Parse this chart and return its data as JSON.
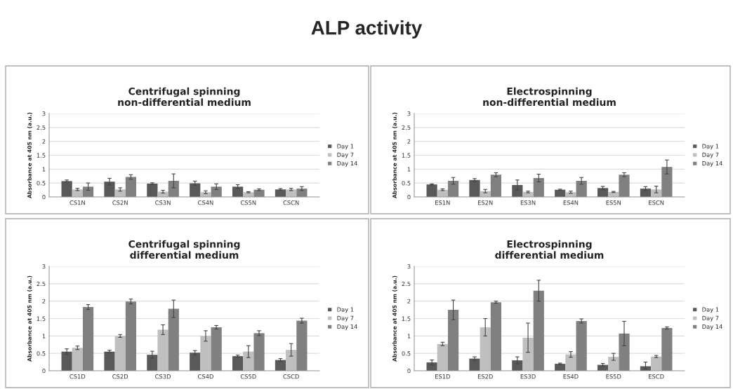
{
  "chart_data": [
    {
      "type": "bar",
      "title": "Centrifugal spinning\nnon-differential medium",
      "ylabel": "Absorbance at 405 nm (a.u.)",
      "annotations": [
        "ALP activity"
      ],
      "categories": [
        "CS1N",
        "CS2N",
        "CS3N",
        "CS4N",
        "CS5N",
        "CSCN"
      ],
      "ylim": [
        0,
        3
      ],
      "yticks": [
        0,
        0.5,
        1,
        1.5,
        2,
        2.5,
        3
      ],
      "grid": "y",
      "legend": "right",
      "series": [
        {
          "name": "Day 1",
          "color": "#595959",
          "values": [
            0.57,
            0.55,
            0.48,
            0.49,
            0.37,
            0.27
          ],
          "errors": [
            0.04,
            0.12,
            0.03,
            0.08,
            0.07,
            0.03
          ]
        },
        {
          "name": "Day 7",
          "color": "#bfbfbf",
          "values": [
            0.27,
            0.27,
            0.19,
            0.17,
            0.17,
            0.27
          ],
          "errors": [
            0.04,
            0.06,
            0.05,
            0.05,
            0.02,
            0.04
          ]
        },
        {
          "name": "Day 14",
          "color": "#808080",
          "values": [
            0.37,
            0.72,
            0.58,
            0.37,
            0.26,
            0.3
          ],
          "errors": [
            0.13,
            0.08,
            0.25,
            0.1,
            0.03,
            0.07
          ]
        }
      ]
    },
    {
      "type": "bar",
      "title": "Electrospinning\nnon-differential medium",
      "ylabel": "Absorbance at 405 nm (a.u.)",
      "categories": [
        "ES1N",
        "ES2N",
        "ES3N",
        "ES4N",
        "ES5N",
        "ESCN"
      ],
      "ylim": [
        0,
        3
      ],
      "yticks": [
        0,
        0.5,
        1,
        1.5,
        2,
        2.5,
        3
      ],
      "grid": "y",
      "legend": "right",
      "series": [
        {
          "name": "Day 1",
          "color": "#595959",
          "values": [
            0.45,
            0.61,
            0.43,
            0.26,
            0.32,
            0.3
          ],
          "errors": [
            0.02,
            0.05,
            0.18,
            0.02,
            0.06,
            0.07
          ]
        },
        {
          "name": "Day 7",
          "color": "#bfbfbf",
          "values": [
            0.26,
            0.21,
            0.18,
            0.17,
            0.18,
            0.27
          ],
          "errors": [
            0.03,
            0.06,
            0.03,
            0.04,
            0.02,
            0.12
          ]
        },
        {
          "name": "Day 14",
          "color": "#808080",
          "values": [
            0.58,
            0.8,
            0.68,
            0.58,
            0.8,
            1.08
          ],
          "errors": [
            0.12,
            0.07,
            0.14,
            0.12,
            0.07,
            0.25
          ]
        }
      ]
    },
    {
      "type": "bar",
      "title": "Centrifugal spinning\ndifferential medium",
      "ylabel": "Absorbance at 405 nm (a.u.)",
      "categories": [
        "CS1D",
        "CS2D",
        "CS3D",
        "CS4D",
        "CS5D",
        "CSCD"
      ],
      "ylim": [
        0,
        3
      ],
      "yticks": [
        0,
        0.5,
        1,
        1.5,
        2,
        2.5,
        3
      ],
      "grid": "y",
      "legend": "right",
      "series": [
        {
          "name": "Day 1",
          "color": "#595959",
          "values": [
            0.55,
            0.55,
            0.46,
            0.52,
            0.42,
            0.31
          ],
          "errors": [
            0.08,
            0.04,
            0.1,
            0.06,
            0.03,
            0.04
          ]
        },
        {
          "name": "Day 7",
          "color": "#bfbfbf",
          "values": [
            0.66,
            1.0,
            1.18,
            1.0,
            0.55,
            0.6
          ],
          "errors": [
            0.05,
            0.04,
            0.14,
            0.15,
            0.17,
            0.18
          ]
        },
        {
          "name": "Day 14",
          "color": "#808080",
          "values": [
            1.83,
            1.99,
            1.78,
            1.25,
            1.08,
            1.44
          ],
          "errors": [
            0.07,
            0.07,
            0.25,
            0.05,
            0.07,
            0.07
          ]
        }
      ]
    },
    {
      "type": "bar",
      "title": "Electrospinning\ndifferential medium",
      "ylabel": "Absorbance at 405 nm (a.u.)",
      "categories": [
        "ES1D",
        "ES2D",
        "ES3D",
        "ES4D",
        "ES5D",
        "ESCD"
      ],
      "ylim": [
        0,
        3
      ],
      "yticks": [
        0,
        0.5,
        1,
        1.5,
        2,
        2.5,
        3
      ],
      "grid": "y",
      "legend": "right",
      "series": [
        {
          "name": "Day 1",
          "color": "#595959",
          "values": [
            0.24,
            0.35,
            0.3,
            0.2,
            0.17,
            0.13
          ],
          "errors": [
            0.07,
            0.05,
            0.1,
            0.02,
            0.04,
            [
              0.05,
              0.25
            ]
          ]
        },
        {
          "name": "Day 7",
          "color": "#bfbfbf",
          "values": [
            0.77,
            1.25,
            0.95,
            0.47,
            0.4,
            0.41
          ],
          "errors": [
            0.05,
            0.25,
            0.42,
            0.08,
            0.1,
            0.03
          ]
        },
        {
          "name": "Day 14",
          "color": "#808080",
          "values": [
            1.75,
            1.97,
            2.3,
            1.43,
            1.07,
            1.23
          ],
          "errors": [
            0.28,
            0.03,
            0.3,
            0.06,
            0.35,
            0.03
          ]
        }
      ]
    }
  ]
}
